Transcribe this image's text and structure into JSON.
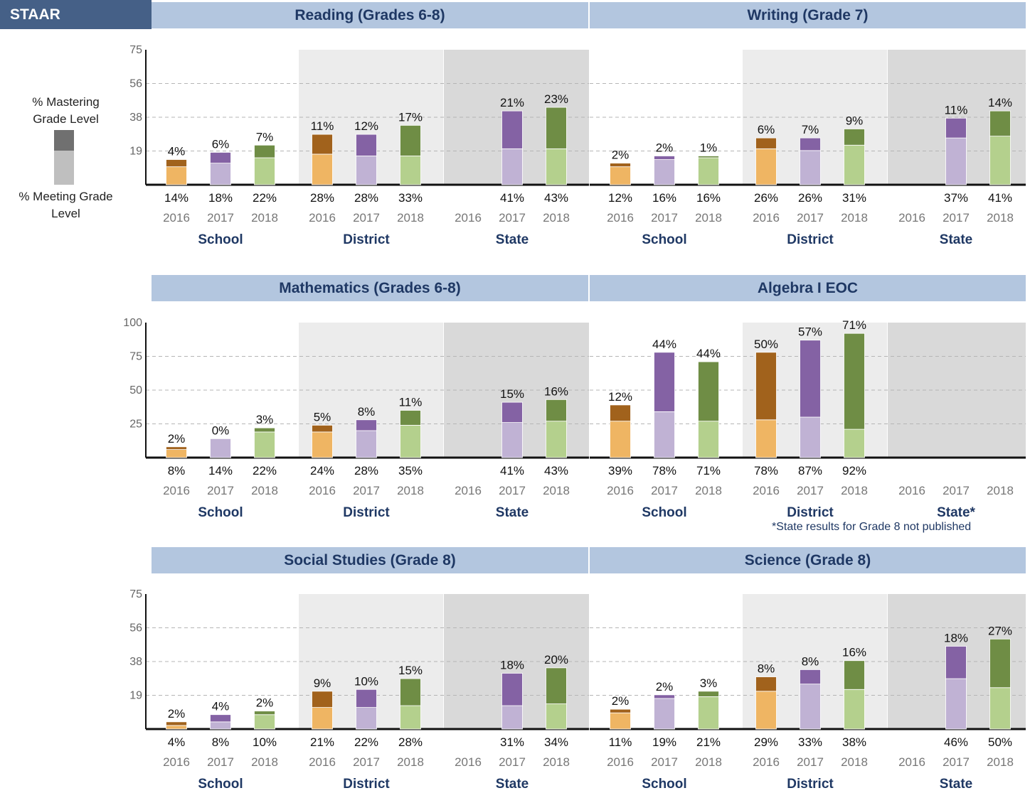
{
  "header": {
    "label": "STAAR"
  },
  "legend": {
    "mastering_label": "% Mastering Grade Level",
    "meeting_label": "% Meeting Grade Level"
  },
  "footnote": "*State results for Grade 8 not published",
  "colors": {
    "orange_meet": "#efb563",
    "orange_master": "#a1621c",
    "purple_meet": "#c0b2d4",
    "purple_master": "#8462a4",
    "green_meet": "#b4d08d",
    "green_master": "#6f8d45",
    "bg_district": "#ececec",
    "bg_state": "#d9d9d9"
  },
  "chart_data": [
    {
      "type": "bar",
      "title": "Reading (Grades 6-8)",
      "ylim": [
        0,
        75
      ],
      "yticks": [
        "19",
        "38",
        "56",
        "75"
      ],
      "groups": [
        {
          "name": "School",
          "years": [
            "2016",
            "2017",
            "2018"
          ],
          "meeting": [
            "14%",
            "18%",
            "22%"
          ],
          "mastering": [
            "4%",
            "6%",
            "7%"
          ],
          "meeting_values": [
            14,
            18,
            22
          ],
          "mastering_values": [
            4,
            6,
            7
          ]
        },
        {
          "name": "District",
          "years": [
            "2016",
            "2017",
            "2018"
          ],
          "meeting": [
            "28%",
            "28%",
            "33%"
          ],
          "mastering": [
            "11%",
            "12%",
            "17%"
          ],
          "meeting_values": [
            28,
            28,
            33
          ],
          "mastering_values": [
            11,
            12,
            17
          ]
        },
        {
          "name": "State",
          "years": [
            "2016",
            "2017",
            "2018"
          ],
          "meeting": [
            "",
            "41%",
            "43%"
          ],
          "mastering": [
            "",
            "21%",
            "23%"
          ],
          "meeting_values": [
            null,
            41,
            43
          ],
          "mastering_values": [
            null,
            21,
            23
          ]
        }
      ]
    },
    {
      "type": "bar",
      "title": "Writing (Grade 7)",
      "ylim": [
        0,
        75
      ],
      "yticks": [],
      "groups": [
        {
          "name": "School",
          "years": [
            "2016",
            "2017",
            "2018"
          ],
          "meeting": [
            "12%",
            "16%",
            "16%"
          ],
          "mastering": [
            "2%",
            "2%",
            "1%"
          ],
          "meeting_values": [
            12,
            16,
            16
          ],
          "mastering_values": [
            2,
            2,
            1
          ]
        },
        {
          "name": "District",
          "years": [
            "2016",
            "2017",
            "2018"
          ],
          "meeting": [
            "26%",
            "26%",
            "31%"
          ],
          "mastering": [
            "6%",
            "7%",
            "9%"
          ],
          "meeting_values": [
            26,
            26,
            31
          ],
          "mastering_values": [
            6,
            7,
            9
          ]
        },
        {
          "name": "State",
          "years": [
            "2016",
            "2017",
            "2018"
          ],
          "meeting": [
            "",
            "37%",
            "41%"
          ],
          "mastering": [
            "",
            "11%",
            "14%"
          ],
          "meeting_values": [
            null,
            37,
            41
          ],
          "mastering_values": [
            null,
            11,
            14
          ]
        }
      ]
    },
    {
      "type": "bar",
      "title": "Mathematics (Grades 6-8)",
      "ylim": [
        0,
        100
      ],
      "yticks": [
        "25",
        "50",
        "75",
        "100"
      ],
      "groups": [
        {
          "name": "School",
          "years": [
            "2016",
            "2017",
            "2018"
          ],
          "meeting": [
            "8%",
            "14%",
            "22%"
          ],
          "mastering": [
            "2%",
            "0%",
            "3%"
          ],
          "meeting_values": [
            8,
            14,
            22
          ],
          "mastering_values": [
            2,
            0,
            3
          ]
        },
        {
          "name": "District",
          "years": [
            "2016",
            "2017",
            "2018"
          ],
          "meeting": [
            "24%",
            "28%",
            "35%"
          ],
          "mastering": [
            "5%",
            "8%",
            "11%"
          ],
          "meeting_values": [
            24,
            28,
            35
          ],
          "mastering_values": [
            5,
            8,
            11
          ]
        },
        {
          "name": "State",
          "years": [
            "2016",
            "2017",
            "2018"
          ],
          "meeting": [
            "",
            "41%",
            "43%"
          ],
          "mastering": [
            "",
            "15%",
            "16%"
          ],
          "meeting_values": [
            null,
            41,
            43
          ],
          "mastering_values": [
            null,
            15,
            16
          ]
        }
      ]
    },
    {
      "type": "bar",
      "title": "Algebra I EOC",
      "ylim": [
        0,
        100
      ],
      "yticks": [],
      "groups": [
        {
          "name": "School",
          "years": [
            "2016",
            "2017",
            "2018"
          ],
          "meeting": [
            "39%",
            "78%",
            "71%"
          ],
          "mastering": [
            "12%",
            "44%",
            "44%"
          ],
          "meeting_values": [
            39,
            78,
            71
          ],
          "mastering_values": [
            12,
            44,
            44
          ]
        },
        {
          "name": "District",
          "years": [
            "2016",
            "2017",
            "2018"
          ],
          "meeting": [
            "78%",
            "87%",
            "92%"
          ],
          "mastering": [
            "50%",
            "57%",
            "71%"
          ],
          "meeting_values": [
            78,
            87,
            92
          ],
          "mastering_values": [
            50,
            57,
            71
          ]
        },
        {
          "name": "State*",
          "years": [
            "2016",
            "2017",
            "2018"
          ],
          "meeting": [
            "",
            "",
            ""
          ],
          "mastering": [
            "",
            "",
            ""
          ],
          "meeting_values": [
            null,
            null,
            null
          ],
          "mastering_values": [
            null,
            null,
            null
          ]
        }
      ]
    },
    {
      "type": "bar",
      "title": "Social Studies (Grade 8)",
      "ylim": [
        0,
        75
      ],
      "yticks": [
        "19",
        "38",
        "56",
        "75"
      ],
      "groups": [
        {
          "name": "School",
          "years": [
            "2016",
            "2017",
            "2018"
          ],
          "meeting": [
            "4%",
            "8%",
            "10%"
          ],
          "mastering": [
            "2%",
            "4%",
            "2%"
          ],
          "meeting_values": [
            4,
            8,
            10
          ],
          "mastering_values": [
            2,
            4,
            2
          ]
        },
        {
          "name": "District",
          "years": [
            "2016",
            "2017",
            "2018"
          ],
          "meeting": [
            "21%",
            "22%",
            "28%"
          ],
          "mastering": [
            "9%",
            "10%",
            "15%"
          ],
          "meeting_values": [
            21,
            22,
            28
          ],
          "mastering_values": [
            9,
            10,
            15
          ]
        },
        {
          "name": "State",
          "years": [
            "2016",
            "2017",
            "2018"
          ],
          "meeting": [
            "",
            "31%",
            "34%"
          ],
          "mastering": [
            "",
            "18%",
            "20%"
          ],
          "meeting_values": [
            null,
            31,
            34
          ],
          "mastering_values": [
            null,
            18,
            20
          ]
        }
      ]
    },
    {
      "type": "bar",
      "title": "Science (Grade 8)",
      "ylim": [
        0,
        75
      ],
      "yticks": [],
      "groups": [
        {
          "name": "School",
          "years": [
            "2016",
            "2017",
            "2018"
          ],
          "meeting": [
            "11%",
            "19%",
            "21%"
          ],
          "mastering": [
            "2%",
            "2%",
            "3%"
          ],
          "meeting_values": [
            11,
            19,
            21
          ],
          "mastering_values": [
            2,
            2,
            3
          ]
        },
        {
          "name": "District",
          "years": [
            "2016",
            "2017",
            "2018"
          ],
          "meeting": [
            "29%",
            "33%",
            "38%"
          ],
          "mastering": [
            "8%",
            "8%",
            "16%"
          ],
          "meeting_values": [
            29,
            33,
            38
          ],
          "mastering_values": [
            8,
            8,
            16
          ]
        },
        {
          "name": "State",
          "years": [
            "2016",
            "2017",
            "2018"
          ],
          "meeting": [
            "",
            "46%",
            "50%"
          ],
          "mastering": [
            "",
            "18%",
            "27%"
          ],
          "meeting_values": [
            null,
            46,
            50
          ],
          "mastering_values": [
            null,
            18,
            27
          ]
        }
      ]
    }
  ]
}
